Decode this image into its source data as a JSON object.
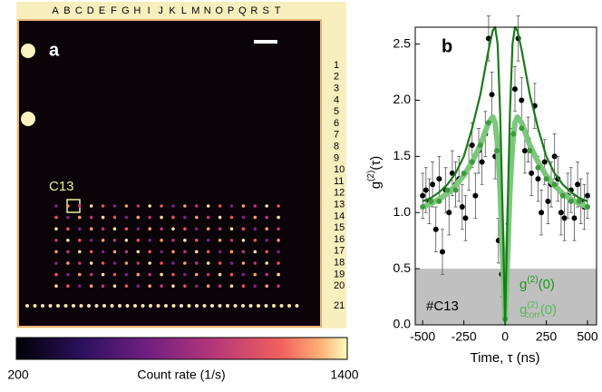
{
  "panel_a": {
    "label": "a",
    "columns": [
      "A",
      "B",
      "C",
      "D",
      "E",
      "F",
      "G",
      "H",
      "I",
      "J",
      "K",
      "L",
      "M",
      "N",
      "O",
      "P",
      "Q",
      "R",
      "S",
      "T"
    ],
    "rows": [
      1,
      2,
      3,
      4,
      5,
      6,
      7,
      8,
      9,
      10,
      11,
      12,
      13,
      14,
      15,
      16,
      17,
      18,
      19,
      20,
      21
    ],
    "marker_label": "C13",
    "colorbar": {
      "min": 200,
      "max": 1400,
      "label": "Count rate (1/s)"
    }
  },
  "chart_data": {
    "type": "scatter",
    "panel_label": "b",
    "x_label": "Time, τ (ns)",
    "y_label": {
      "base": "g",
      "sup": "(2)",
      "arg": "(τ)"
    },
    "xlim": [
      -545,
      555
    ],
    "ylim": [
      0,
      2.65
    ],
    "xticks": [
      -500,
      -250,
      0,
      250,
      500
    ],
    "yticks": [
      {
        "value": 0,
        "label": "0.0"
      },
      0.5,
      {
        "value": 1,
        "label": "1.0"
      },
      1.5,
      {
        "value": 2,
        "label": "2.0"
      },
      2.5
    ],
    "shade_ylim": [
      0,
      0.5
    ],
    "shade_color": "#c0c0c0",
    "series": [
      {
        "style": "points",
        "color": "#000000",
        "x": [
          -500,
          -480,
          -460,
          -440,
          -420,
          -400,
          -380,
          -360,
          -340,
          -320,
          -300,
          -280,
          -260,
          -240,
          -220,
          -200,
          -180,
          -160,
          -140,
          -120,
          -100,
          -80,
          -60,
          -40,
          -20,
          0,
          20,
          40,
          60,
          80,
          100,
          120,
          140,
          160,
          180,
          200,
          220,
          240,
          260,
          280,
          300,
          320,
          340,
          360,
          380,
          400,
          420,
          440,
          460,
          480,
          500
        ],
        "values": [
          1.15,
          1.2,
          1.1,
          1.25,
          0.85,
          1.3,
          0.65,
          1.2,
          1.0,
          1.35,
          1.25,
          1.3,
          1.05,
          0.95,
          1.4,
          1.6,
          1.15,
          1.55,
          1.45,
          1.7,
          2.55,
          2.05,
          1.5,
          0.75,
          0.45,
          0.3,
          0.9,
          1.55,
          2.1,
          2.55,
          2.0,
          1.55,
          1.65,
          1.35,
          1.95,
          1.3,
          1.0,
          1.45,
          1.1,
          1.25,
          1.5,
          1.3,
          1.0,
          0.95,
          1.15,
          1.2,
          0.95,
          1.25,
          1.1,
          1.05,
          1.15
        ],
        "errors": [
          0.2,
          0.2,
          0.2,
          0.2,
          0.2,
          0.2,
          0.2,
          0.2,
          0.2,
          0.2,
          0.2,
          0.2,
          0.2,
          0.2,
          0.2,
          0.2,
          0.2,
          0.2,
          0.2,
          0.2,
          0.2,
          0.2,
          0.2,
          0.2,
          0.2,
          0.2,
          0.2,
          0.2,
          0.2,
          0.2,
          0.2,
          0.2,
          0.2,
          0.2,
          0.2,
          0.2,
          0.2,
          0.2,
          0.2,
          0.2,
          0.2,
          0.2,
          0.2,
          0.2,
          0.2,
          0.2,
          0.2,
          0.2,
          0.2,
          0.2,
          0.2
        ]
      },
      {
        "style": "thick-line",
        "color": "#7cc77c",
        "x": [
          -500,
          -450,
          -400,
          -350,
          -300,
          -250,
          -200,
          -150,
          -100,
          -75,
          -60,
          -45,
          -30,
          -15,
          0,
          15,
          30,
          45,
          60,
          75,
          100,
          150,
          200,
          250,
          300,
          350,
          400,
          450,
          500
        ],
        "values": [
          1.05,
          1.08,
          1.12,
          1.17,
          1.24,
          1.33,
          1.45,
          1.6,
          1.8,
          1.85,
          1.8,
          1.6,
          1.2,
          0.6,
          0.05,
          0.6,
          1.2,
          1.6,
          1.8,
          1.85,
          1.8,
          1.6,
          1.45,
          1.33,
          1.24,
          1.17,
          1.12,
          1.08,
          1.05
        ]
      },
      {
        "style": "points",
        "color": "#3f9a3f",
        "x": [
          -500,
          -450,
          -400,
          -350,
          -300,
          -250,
          -200,
          -150,
          -100,
          -50,
          0,
          50,
          100,
          150,
          200,
          250,
          300,
          350,
          400,
          450,
          500
        ],
        "values": [
          1.05,
          1.1,
          1.1,
          1.2,
          1.2,
          1.35,
          1.45,
          1.6,
          1.8,
          1.55,
          0.05,
          1.7,
          1.75,
          1.55,
          1.4,
          1.3,
          1.25,
          1.15,
          1.1,
          1.1,
          1.05
        ]
      },
      {
        "style": "line",
        "color": "#1a7a1a",
        "x": [
          -500,
          -450,
          -400,
          -350,
          -300,
          -250,
          -200,
          -150,
          -100,
          -75,
          -60,
          -45,
          -30,
          -15,
          0,
          15,
          30,
          45,
          60,
          75,
          100,
          150,
          200,
          250,
          300,
          350,
          400,
          450,
          500
        ],
        "values": [
          1.1,
          1.13,
          1.18,
          1.25,
          1.35,
          1.5,
          1.75,
          2.05,
          2.45,
          2.62,
          2.65,
          2.5,
          1.9,
          1.0,
          0.0,
          1.0,
          1.9,
          2.5,
          2.65,
          2.62,
          2.45,
          2.05,
          1.75,
          1.5,
          1.35,
          1.25,
          1.18,
          1.13,
          1.1
        ]
      }
    ],
    "annotations": [
      {
        "text": "#C13",
        "color": "#000000"
      },
      {
        "base": "g",
        "sup": "(2)",
        "arg": "(0)",
        "color": "#1a9a1a"
      },
      {
        "base": "g",
        "sup": "(2)",
        "sub": "corr",
        "arg": "(0)",
        "color": "#55b855"
      }
    ]
  }
}
